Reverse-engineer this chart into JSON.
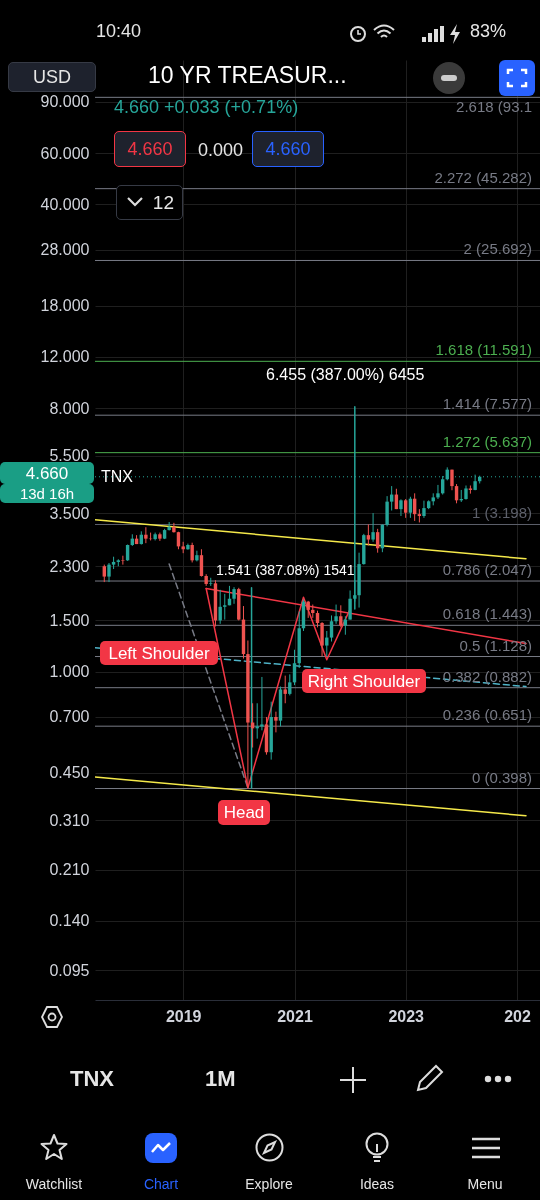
{
  "chart_data": {
    "type": "candlestick",
    "title": "10 YR TREASUR...",
    "log": true,
    "grid": true,
    "ylim": [
      0.075,
      125
    ],
    "yticks": [
      {
        "value": 90,
        "label": "90.000"
      },
      {
        "value": 60,
        "label": "60.000"
      },
      {
        "value": 40,
        "label": "40.000"
      },
      {
        "value": 28,
        "label": "28.000"
      },
      {
        "value": 18,
        "label": "18.000"
      },
      {
        "value": 12,
        "label": "12.000"
      },
      {
        "value": 8,
        "label": "8.000"
      },
      {
        "value": 5.5,
        "label": "5.500"
      },
      {
        "value": 3.5,
        "label": "3.500"
      },
      {
        "value": 2.3,
        "label": "2.300"
      },
      {
        "value": 1.5,
        "label": "1.500"
      },
      {
        "value": 1,
        "label": "1.000"
      },
      {
        "value": 0.7,
        "label": "0.700"
      },
      {
        "value": 0.45,
        "label": "0.450"
      },
      {
        "value": 0.31,
        "label": "0.310"
      },
      {
        "value": 0.21,
        "label": "0.210"
      },
      {
        "value": 0.14,
        "label": "0.140"
      },
      {
        "value": 0.095,
        "label": "0.095"
      }
    ],
    "xlim": [
      "2017-06",
      "2025-06"
    ],
    "xticks": [
      {
        "value": "2019",
        "label": "2019"
      },
      {
        "value": "2021",
        "label": "2021"
      },
      {
        "value": "2023",
        "label": "2023"
      },
      {
        "value": "2025",
        "label": "202"
      }
    ],
    "x": [
      "2017-08",
      "2017-09",
      "2017-10",
      "2017-11",
      "2017-12",
      "2018-01",
      "2018-02",
      "2018-03",
      "2018-04",
      "2018-05",
      "2018-06",
      "2018-07",
      "2018-08",
      "2018-09",
      "2018-10",
      "2018-11",
      "2018-12",
      "2019-01",
      "2019-02",
      "2019-03",
      "2019-04",
      "2019-05",
      "2019-06",
      "2019-07",
      "2019-08",
      "2019-09",
      "2019-10",
      "2019-11",
      "2019-12",
      "2020-01",
      "2020-02",
      "2020-03",
      "2020-04",
      "2020-05",
      "2020-06",
      "2020-07",
      "2020-08",
      "2020-09",
      "2020-10",
      "2020-11",
      "2020-12",
      "2021-01",
      "2021-02",
      "2021-03",
      "2021-04",
      "2021-05",
      "2021-06",
      "2021-07",
      "2021-08",
      "2021-09",
      "2021-10",
      "2021-11",
      "2021-12",
      "2022-01",
      "2022-02",
      "2022-03",
      "2022-04",
      "2022-05",
      "2022-06",
      "2022-07",
      "2022-08",
      "2022-09",
      "2022-10",
      "2022-11",
      "2022-12",
      "2023-01",
      "2023-02",
      "2023-03",
      "2023-04",
      "2023-05",
      "2023-06",
      "2023-07",
      "2023-08",
      "2023-09",
      "2023-10",
      "2023-11",
      "2023-12",
      "2024-01",
      "2024-02",
      "2024-03",
      "2024-04",
      "2024-05"
    ],
    "ohlc": [
      [
        2.3,
        2.33,
        2.03,
        2.12
      ],
      [
        2.12,
        2.36,
        2.03,
        2.33
      ],
      [
        2.33,
        2.48,
        2.25,
        2.38
      ],
      [
        2.38,
        2.43,
        2.3,
        2.41
      ],
      [
        2.41,
        2.5,
        2.33,
        2.4
      ],
      [
        2.41,
        2.73,
        2.4,
        2.72
      ],
      [
        2.72,
        2.96,
        2.7,
        2.86
      ],
      [
        2.86,
        2.94,
        2.74,
        2.74
      ],
      [
        2.74,
        3.03,
        2.73,
        2.95
      ],
      [
        2.95,
        3.13,
        2.76,
        2.86
      ],
      [
        2.86,
        3.0,
        2.82,
        2.85
      ],
      [
        2.85,
        3.0,
        2.82,
        2.96
      ],
      [
        2.96,
        3.0,
        2.81,
        2.86
      ],
      [
        2.86,
        3.09,
        2.85,
        3.06
      ],
      [
        3.06,
        3.26,
        3.05,
        3.14
      ],
      [
        3.14,
        3.24,
        3.0,
        3.01
      ],
      [
        3.01,
        3.02,
        2.63,
        2.69
      ],
      [
        2.69,
        2.79,
        2.55,
        2.63
      ],
      [
        2.63,
        2.75,
        2.62,
        2.72
      ],
      [
        2.72,
        2.77,
        2.37,
        2.41
      ],
      [
        2.41,
        2.6,
        2.39,
        2.51
      ],
      [
        2.51,
        2.63,
        2.12,
        2.13
      ],
      [
        2.13,
        2.16,
        1.97,
        2.0
      ],
      [
        2.0,
        2.1,
        1.97,
        2.01
      ],
      [
        2.01,
        2.06,
        1.43,
        1.5
      ],
      [
        1.5,
        1.91,
        1.46,
        1.67
      ],
      [
        1.67,
        1.85,
        1.51,
        1.69
      ],
      [
        1.69,
        1.97,
        1.69,
        1.78
      ],
      [
        1.78,
        1.95,
        1.71,
        1.92
      ],
      [
        1.92,
        1.94,
        1.5,
        1.51
      ],
      [
        1.51,
        1.68,
        1.11,
        1.15
      ],
      [
        1.15,
        1.28,
        0.4,
        0.67
      ],
      [
        0.67,
        0.78,
        0.55,
        0.64
      ],
      [
        0.64,
        0.78,
        0.59,
        0.65
      ],
      [
        0.65,
        0.96,
        0.63,
        0.66
      ],
      [
        0.66,
        0.7,
        0.52,
        0.53
      ],
      [
        0.53,
        0.79,
        0.5,
        0.7
      ],
      [
        0.7,
        0.73,
        0.62,
        0.68
      ],
      [
        0.68,
        0.89,
        0.65,
        0.87
      ],
      [
        0.87,
        0.97,
        0.78,
        0.84
      ],
      [
        0.84,
        0.98,
        0.83,
        0.92
      ],
      [
        0.92,
        1.19,
        0.9,
        1.07
      ],
      [
        1.07,
        1.61,
        1.03,
        1.41
      ],
      [
        1.41,
        1.77,
        1.38,
        1.74
      ],
      [
        1.74,
        1.75,
        1.53,
        1.63
      ],
      [
        1.63,
        1.7,
        1.53,
        1.59
      ],
      [
        1.59,
        1.62,
        1.42,
        1.47
      ],
      [
        1.47,
        1.48,
        1.13,
        1.23
      ],
      [
        1.23,
        1.38,
        1.13,
        1.31
      ],
      [
        1.31,
        1.56,
        1.27,
        1.49
      ],
      [
        1.49,
        1.7,
        1.46,
        1.55
      ],
      [
        1.55,
        1.69,
        1.42,
        1.44
      ],
      [
        1.44,
        1.55,
        1.34,
        1.51
      ],
      [
        1.51,
        1.9,
        1.51,
        1.78
      ],
      [
        1.78,
        2.06,
        1.74,
        1.83
      ],
      [
        1.83,
        2.56,
        1.66,
        2.34
      ],
      [
        2.34,
        2.97,
        2.33,
        2.94
      ],
      [
        2.94,
        3.2,
        2.71,
        2.84
      ],
      [
        2.84,
        3.5,
        2.79,
        3.01
      ],
      [
        3.01,
        3.09,
        2.56,
        2.65
      ],
      [
        2.65,
        3.2,
        2.57,
        3.19
      ],
      [
        3.19,
        4.0,
        3.15,
        3.83
      ],
      [
        3.83,
        4.33,
        3.57,
        4.05
      ],
      [
        4.05,
        4.24,
        3.61,
        3.61
      ],
      [
        3.61,
        3.9,
        3.42,
        3.87
      ],
      [
        3.87,
        3.91,
        3.37,
        3.51
      ],
      [
        3.51,
        3.98,
        3.37,
        3.92
      ],
      [
        3.92,
        4.09,
        3.29,
        3.47
      ],
      [
        3.47,
        3.61,
        3.25,
        3.42
      ],
      [
        3.42,
        3.86,
        3.37,
        3.64
      ],
      [
        3.64,
        3.87,
        3.61,
        3.84
      ],
      [
        3.84,
        4.09,
        3.72,
        3.96
      ],
      [
        3.96,
        4.37,
        3.91,
        4.09
      ],
      [
        4.09,
        4.69,
        4.05,
        4.57
      ],
      [
        4.57,
        5.02,
        4.53,
        4.93
      ],
      [
        4.93,
        4.93,
        4.19,
        4.33
      ],
      [
        4.33,
        4.4,
        3.78,
        3.87
      ],
      [
        3.87,
        4.2,
        3.82,
        3.91
      ],
      [
        3.91,
        4.35,
        3.89,
        4.25
      ],
      [
        4.25,
        4.35,
        4.08,
        4.2
      ],
      [
        4.2,
        4.74,
        4.19,
        4.5
      ],
      [
        4.5,
        4.7,
        4.42,
        4.66
      ]
    ],
    "colors": [
      "#ef5350",
      "#26a69a",
      "#26a69a",
      "#26a69a",
      "#ef5350",
      "#26a69a",
      "#26a69a",
      "#ef5350",
      "#26a69a",
      "#ef5350",
      "#ef5350",
      "#26a69a",
      "#ef5350",
      "#26a69a",
      "#26a69a",
      "#ef5350",
      "#ef5350",
      "#ef5350",
      "#26a69a",
      "#ef5350",
      "#26a69a",
      "#ef5350",
      "#ef5350",
      "#26a69a",
      "#ef5350",
      "#26a69a",
      "#26a69a",
      "#26a69a",
      "#26a69a",
      "#ef5350",
      "#ef5350",
      "#ef5350",
      "#ef5350",
      "#26a69a",
      "#26a69a",
      "#ef5350",
      "#26a69a",
      "#ef5350",
      "#26a69a",
      "#ef5350",
      "#26a69a",
      "#26a69a",
      "#26a69a",
      "#26a69a",
      "#ef5350",
      "#ef5350",
      "#ef5350",
      "#ef5350",
      "#26a69a",
      "#26a69a",
      "#26a69a",
      "#ef5350",
      "#26a69a",
      "#26a69a",
      "#26a69a",
      "#26a69a",
      "#26a69a",
      "#ef5350",
      "#26a69a",
      "#ef5350",
      "#26a69a",
      "#26a69a",
      "#26a69a",
      "#ef5350",
      "#26a69a",
      "#ef5350",
      "#26a69a",
      "#ef5350",
      "#ef5350",
      "#26a69a",
      "#26a69a",
      "#26a69a",
      "#26a69a",
      "#26a69a",
      "#26a69a",
      "#ef5350",
      "#ef5350",
      "#26a69a",
      "#26a69a",
      "#ef5350",
      "#26a69a",
      "#26a69a"
    ],
    "series": [
      {
        "type": "line",
        "x": [
          "2017-06",
          "2025-03"
        ],
        "values": [
          3.32,
          2.44
        ],
        "color": "#f5e94a",
        "line_style": "solid"
      },
      {
        "type": "line",
        "x": [
          "2017-06",
          "2025-03"
        ],
        "values": [
          0.436,
          0.321
        ],
        "color": "#f5e94a",
        "line_style": "solid"
      },
      {
        "type": "line",
        "x": [
          "2019-06",
          "2025-03"
        ],
        "values": [
          1.93,
          1.25
        ],
        "color": "#f23645",
        "line_style": "solid"
      },
      {
        "type": "line",
        "x": [
          "2017-06",
          "2025-03"
        ],
        "values": [
          1.21,
          0.89
        ],
        "color": "#4fb3c8",
        "line_style": "dashed"
      },
      {
        "type": "line",
        "x": [
          "2018-10",
          "2020-03"
        ],
        "values": [
          2.34,
          0.4
        ],
        "color": "#787b86",
        "line_style": "dashed"
      },
      {
        "type": "line",
        "x": [
          "2019-06",
          "2020-03",
          "2021-03",
          "2021-08",
          "2022-01"
        ],
        "values": [
          1.93,
          0.4,
          1.8,
          1.1,
          1.64
        ],
        "color": "#f23645",
        "line_style": "solid"
      },
      {
        "type": "line",
        "x": [
          "2020-03-25",
          "2020-03-25"
        ],
        "values": [
          0.4,
          1.94
        ],
        "color": "#26a69a",
        "line_style": "solid"
      },
      {
        "type": "line",
        "x": [
          "2022-02",
          "2022-02"
        ],
        "values": [
          1.64,
          8.1
        ],
        "color": "#26a69a",
        "line_style": "solid"
      }
    ],
    "ref_lines": [
      {
        "axis": "y",
        "value": 93.1,
        "label": "2.618 (93.1",
        "color": "#787b86",
        "line_style": "solid"
      },
      {
        "axis": "y",
        "value": 45.282,
        "label": "2.272 (45.282)",
        "color": "#787b86",
        "line_style": "solid"
      },
      {
        "axis": "y",
        "value": 25.692,
        "label": "2 (25.692)",
        "color": "#787b86",
        "line_style": "solid"
      },
      {
        "axis": "y",
        "value": 11.591,
        "label": "1.618 (11.591)",
        "color": "#4caf50",
        "line_style": "solid"
      },
      {
        "axis": "y",
        "value": 7.577,
        "label": "1.414 (7.577)",
        "color": "#787b86",
        "line_style": "solid"
      },
      {
        "axis": "y",
        "value": 5.637,
        "label": "1.272 (5.637)",
        "color": "#4caf50",
        "line_style": "solid"
      },
      {
        "axis": "y",
        "value": 3.198,
        "label": "1 (3.198)",
        "color": "#5d606b",
        "line_style": "solid"
      },
      {
        "axis": "y",
        "value": 2.047,
        "label": "0.786 (2.047)",
        "color": "#787b86",
        "line_style": "solid"
      },
      {
        "axis": "y",
        "value": 1.443,
        "label": "0.618 (1.443)",
        "color": "#787b86",
        "line_style": "solid"
      },
      {
        "axis": "y",
        "value": 1.128,
        "label": "0.5 (1.128)",
        "color": "#787b86",
        "line_style": "solid"
      },
      {
        "axis": "y",
        "value": 0.882,
        "label": "0.382 (0.882)",
        "color": "#787b86",
        "line_style": "solid"
      },
      {
        "axis": "y",
        "value": 0.651,
        "label": "0.236 (0.651)",
        "color": "#787b86",
        "line_style": "solid"
      },
      {
        "axis": "y",
        "value": 0.398,
        "label": "0 (0.398)",
        "color": "#787b86",
        "line_style": "solid"
      },
      {
        "axis": "y",
        "value": 4.66,
        "label": "TNX",
        "color": "#26a69a",
        "line_style": "dotted"
      }
    ],
    "annotations": [
      "10:40",
      "83%",
      "USD",
      "4.660 +0.033 (+0.71%)",
      "4.660",
      "0.000",
      "4.660",
      "12",
      "4.660",
      "13d 16h",
      "TNX",
      "1M",
      "Watchlist",
      "Chart",
      "Explore",
      "Ideas",
      "Menu",
      "Left Shoulder",
      "Right Shoulder",
      "Head",
      "1.541 (387.08%) 1541",
      "6.455 (387.00%) 6455"
    ]
  }
}
